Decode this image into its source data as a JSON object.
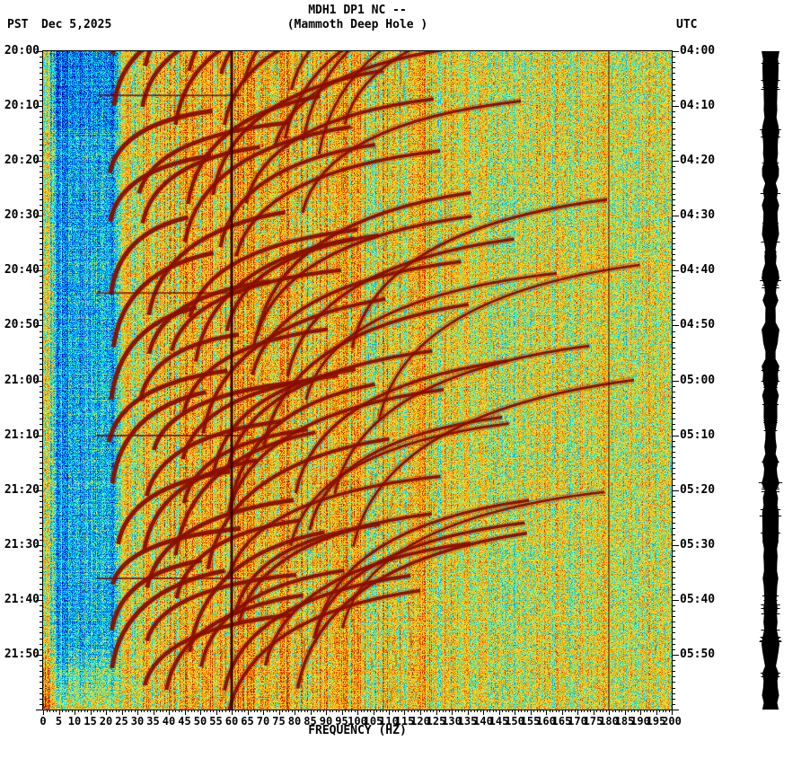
{
  "header": {
    "timezone_left": "PST",
    "date": "Dec 5,2025",
    "timezone_right": "UTC",
    "title_line1": "MDH1 DP1 NC --",
    "title_line2": "(Mammoth Deep Hole )"
  },
  "chart_data": {
    "type": "heatmap",
    "subtype": "spectrogram",
    "station": "MDH1",
    "channel": "DP1",
    "network": "NC",
    "location": "--",
    "site_name": "Mammoth Deep Hole",
    "xlabel": "FREQUENCY (HZ)",
    "x_min": 0,
    "x_max": 200,
    "x_tick_step_hz": 5,
    "x_tick_labels": [
      "0",
      "5",
      "10",
      "15",
      "20",
      "25",
      "30",
      "35",
      "40",
      "45",
      "50",
      "55",
      "60",
      "65",
      "70",
      "75",
      "80",
      "85",
      "90",
      "95",
      "100",
      "105",
      "110",
      "115",
      "120",
      "125",
      "130",
      "135",
      "140",
      "145",
      "150",
      "155",
      "160",
      "165",
      "170",
      "175",
      "180",
      "185",
      "190",
      "195",
      "200"
    ],
    "time_axis_left": {
      "timezone": "PST",
      "start": "20:00",
      "end": "22:00",
      "major_tick_minutes": 10,
      "minor_tick_minutes": 1,
      "labels": [
        "20:00",
        "20:10",
        "20:20",
        "20:30",
        "20:40",
        "20:50",
        "21:00",
        "21:10",
        "21:20",
        "21:30",
        "21:40",
        "21:50"
      ]
    },
    "time_axis_right": {
      "timezone": "UTC",
      "labels": [
        "04:00",
        "04:10",
        "04:20",
        "04:30",
        "04:40",
        "04:50",
        "05:00",
        "05:10",
        "05:20",
        "05:30",
        "05:40",
        "05:50"
      ]
    },
    "powerline_interference_hz": [
      60,
      180
    ],
    "palette_stops": [
      {
        "pos": 0.0,
        "color": "#0000a0"
      },
      {
        "pos": 0.2,
        "color": "#0078ff"
      },
      {
        "pos": 0.35,
        "color": "#00e0e0"
      },
      {
        "pos": 0.5,
        "color": "#e0e846"
      },
      {
        "pos": 0.65,
        "color": "#ffa500"
      },
      {
        "pos": 0.8,
        "color": "#e03c00"
      },
      {
        "pos": 1.0,
        "color": "#7a0000"
      }
    ],
    "bands": [
      {
        "f_lo": 0,
        "f_hi": 2,
        "level": 0.62,
        "desc": "warm band at 0 Hz edge"
      },
      {
        "f_lo": 2,
        "f_hi": 24,
        "level": 0.27,
        "desc": "quiet cyan/blue low-frequency band"
      },
      {
        "f_lo": 24,
        "f_hi": 130,
        "level": 0.57,
        "desc": "energetic yellow/orange/red band with dark-red harmonic arcs"
      },
      {
        "f_lo": 130,
        "f_hi": 200,
        "level": 0.52,
        "desc": "yellow high-frequency band"
      }
    ],
    "event_onsets_min": [
      0,
      8,
      22,
      30,
      44,
      52,
      62,
      70,
      78,
      88,
      96,
      104,
      112
    ],
    "arc_color": "#800600",
    "noise_amplitude": 0.17,
    "trace_color": "#000000"
  }
}
